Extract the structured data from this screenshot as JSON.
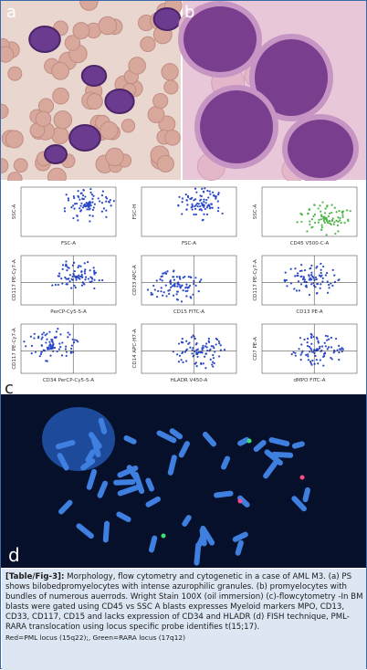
{
  "panels": [
    "a",
    "b",
    "c",
    "d"
  ],
  "flow_plots": [
    {
      "y": "SSC-A",
      "x": "FSC-A"
    },
    {
      "y": "FSC-H",
      "x": "FSC-A"
    },
    {
      "y": "SSC-A",
      "x": "CD45 V500-C-A"
    },
    {
      "y": "CD117 PE-Cy7-A",
      "x": "PerCP-Cy5-5-A"
    },
    {
      "y": "CD33 APC-A",
      "x": "CD15 FITC-A"
    },
    {
      "y": "CD117 PE-Cy7-A",
      "x": "CD13 PE-A"
    },
    {
      "y": "CD117 PE-Cy7-A",
      "x": "CD34 PerCP-Cy5-5-A"
    },
    {
      "y": "CD14 APC-H7-A",
      "x": "HLADR V450-A"
    },
    {
      "y": "CD7 PE-A",
      "x": "dMPO FITC-A"
    }
  ],
  "caption": {
    "label": "[Table/Fig-3]:",
    "text": "Morphology, flow cytometry and cytogenetic in a case of AML M3. (a) PS shows bilobedpromyelocytes with intense azurophilic granules. (b) promyelocytes with bundles of numerous auerrods. Wright Stain 100X (oil immersion) (c)-flowcytometry -In BM blasts were gated using CD45 vs SSC A blasts expresses Myeloid markers MPO, CD13, CD33, CD117, CD15 and lacks expression of CD34 and HLADR (d) FISH technique, PML-RARA translocation using locus specific probe identifies t(15;17).",
    "note": "Red=PML locus (15q22);, Green=RARA locus (17q12)"
  }
}
